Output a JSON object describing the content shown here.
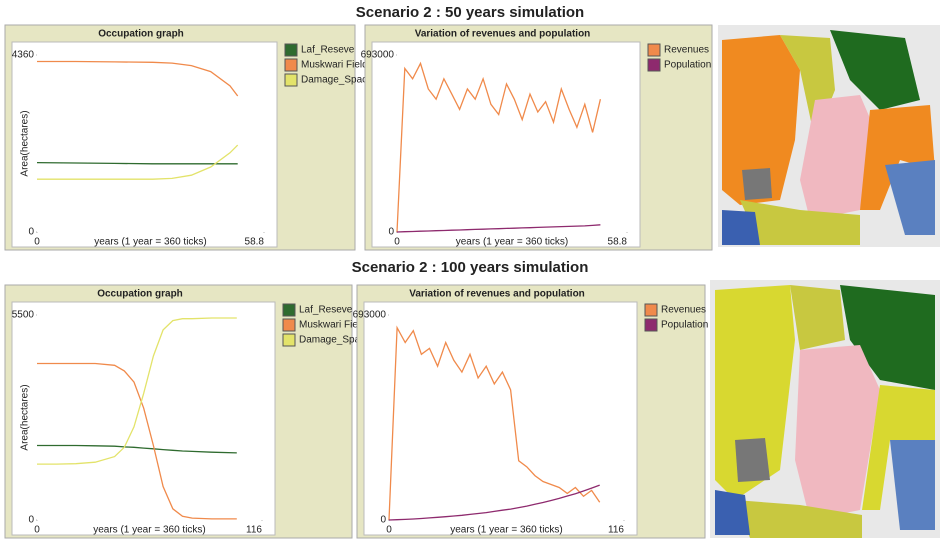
{
  "headings": [
    "Scenario 2 :  50 years  simulation",
    "Scenario 2 :  100 years  simulation"
  ],
  "chart_data": [
    {
      "type": "line",
      "title": "Occupation graph",
      "y_label": "Area(hectares)",
      "x_label": "years (1 year = 360 ticks)",
      "xlim": [
        0,
        58.8
      ],
      "xticks": [
        0,
        58.8
      ],
      "ylim": [
        0,
        4360
      ],
      "yticks": [
        0,
        4360
      ],
      "x": [
        0,
        10,
        20,
        30,
        35,
        40,
        45,
        50,
        52
      ],
      "series": [
        {
          "name": "Laf_Reseve",
          "color": "#2f6b2f",
          "values": [
            1710,
            1700,
            1690,
            1680,
            1680,
            1680,
            1680,
            1680,
            1680
          ]
        },
        {
          "name": "Muskwari Field",
          "color": "#f08a4b",
          "values": [
            4200,
            4200,
            4190,
            4180,
            4160,
            4100,
            3950,
            3600,
            3350
          ]
        },
        {
          "name": "Damage_Space",
          "color": "#e3e36a",
          "values": [
            1300,
            1300,
            1300,
            1300,
            1320,
            1400,
            1600,
            1950,
            2140
          ]
        }
      ]
    },
    {
      "type": "line",
      "title": "Variation of revenues and population",
      "x_label": "years (1 year = 360 ticks)",
      "xlim": [
        0,
        58.8
      ],
      "xticks": [
        0,
        58.8
      ],
      "ylim": [
        0,
        693000
      ],
      "yticks": [
        0,
        693000
      ],
      "x": [
        0,
        2,
        4,
        6,
        8,
        10,
        12,
        14,
        16,
        18,
        20,
        22,
        24,
        26,
        28,
        30,
        32,
        34,
        36,
        38,
        40,
        42,
        44,
        46,
        48,
        50,
        52
      ],
      "series": [
        {
          "name": "Revenues",
          "color": "#f08a4b",
          "values": [
            0,
            640000,
            600000,
            660000,
            560000,
            520000,
            600000,
            540000,
            480000,
            560000,
            520000,
            600000,
            500000,
            460000,
            580000,
            520000,
            440000,
            540000,
            470000,
            510000,
            430000,
            560000,
            480000,
            410000,
            500000,
            390000,
            520000
          ]
        },
        {
          "name": "Population",
          "color": "#8e2a6e",
          "values": [
            0,
            1000,
            2000,
            3000,
            4000,
            5000,
            6000,
            7000,
            8000,
            9000,
            10000,
            11000,
            12000,
            13000,
            14000,
            15000,
            16000,
            17000,
            18000,
            19000,
            20000,
            21000,
            22000,
            23000,
            24000,
            26000,
            28000
          ]
        }
      ]
    },
    {
      "type": "line",
      "title": "Occupation graph",
      "y_label": "Area(hectares)",
      "x_label": "years (1 year = 360 ticks)",
      "xlim": [
        0,
        116
      ],
      "xticks": [
        0,
        116
      ],
      "ylim": [
        0,
        5500
      ],
      "yticks": [
        0,
        5500
      ],
      "x": [
        0,
        10,
        20,
        30,
        40,
        45,
        50,
        55,
        60,
        65,
        70,
        75,
        80,
        90,
        103
      ],
      "series": [
        {
          "name": "Laf_Reseve",
          "color": "#2f6b2f",
          "values": [
            2000,
            2000,
            2000,
            1990,
            1980,
            1960,
            1950,
            1930,
            1910,
            1890,
            1870,
            1850,
            1840,
            1820,
            1800
          ]
        },
        {
          "name": "Muskwari Field",
          "color": "#f08a4b",
          "values": [
            4200,
            4200,
            4200,
            4200,
            4150,
            4000,
            3700,
            3000,
            2000,
            900,
            300,
            100,
            50,
            30,
            30
          ]
        },
        {
          "name": "Damage_Space",
          "color": "#e3e36a",
          "values": [
            1500,
            1500,
            1510,
            1550,
            1700,
            1950,
            2500,
            3400,
            4400,
            5100,
            5350,
            5400,
            5400,
            5420,
            5420
          ]
        }
      ]
    },
    {
      "type": "line",
      "title": "Variation of revenues and population",
      "x_label": "years (1 year = 360 ticks)",
      "xlim": [
        0,
        116
      ],
      "xticks": [
        0,
        116
      ],
      "ylim": [
        0,
        693000
      ],
      "yticks": [
        0,
        693000
      ],
      "x": [
        0,
        4,
        8,
        12,
        16,
        20,
        24,
        28,
        32,
        36,
        40,
        44,
        48,
        52,
        56,
        60,
        64,
        68,
        72,
        76,
        80,
        84,
        88,
        92,
        96,
        100,
        104
      ],
      "series": [
        {
          "name": "Revenues",
          "color": "#f08a4b",
          "values": [
            0,
            650000,
            600000,
            640000,
            560000,
            580000,
            520000,
            600000,
            540000,
            500000,
            560000,
            480000,
            520000,
            460000,
            500000,
            440000,
            200000,
            180000,
            150000,
            130000,
            120000,
            110000,
            90000,
            110000,
            80000,
            100000,
            60000
          ]
        },
        {
          "name": "Population",
          "color": "#8e2a6e",
          "values": [
            0,
            1000,
            2000,
            3500,
            5000,
            7000,
            9000,
            11000,
            13500,
            16000,
            19000,
            22000,
            25000,
            29000,
            33000,
            37000,
            42000,
            47000,
            53000,
            59000,
            66000,
            73000,
            81000,
            89000,
            98000,
            108000,
            118000
          ]
        }
      ]
    }
  ]
}
